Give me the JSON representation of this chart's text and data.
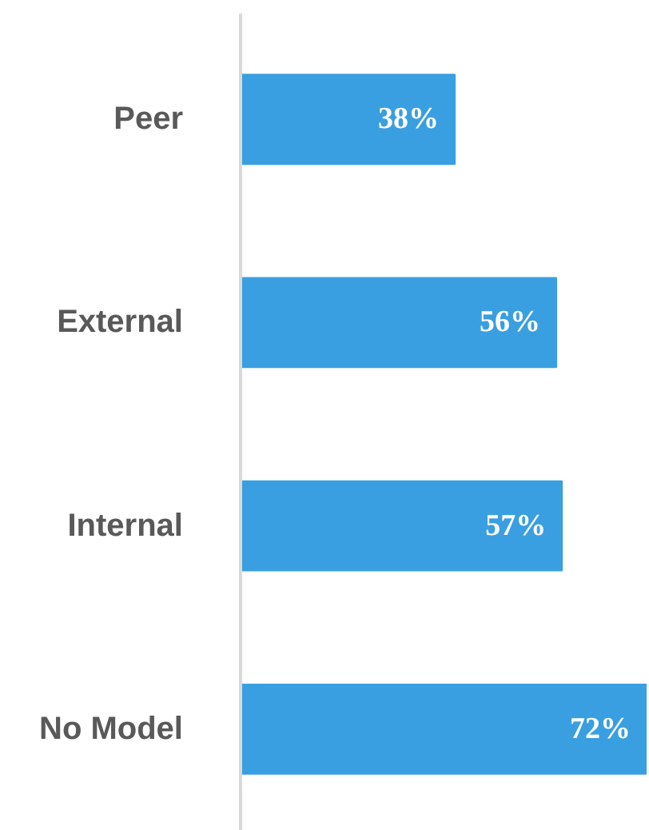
{
  "chart_data": {
    "type": "bar",
    "orientation": "horizontal",
    "categories": [
      "Peer",
      "External",
      "Internal",
      "No Model"
    ],
    "values": [
      38,
      56,
      57,
      72
    ],
    "value_labels": [
      "38%",
      "56%",
      "57%",
      "72%"
    ],
    "color": "#3a9fe0",
    "grid": false,
    "tick_labels": "y"
  }
}
